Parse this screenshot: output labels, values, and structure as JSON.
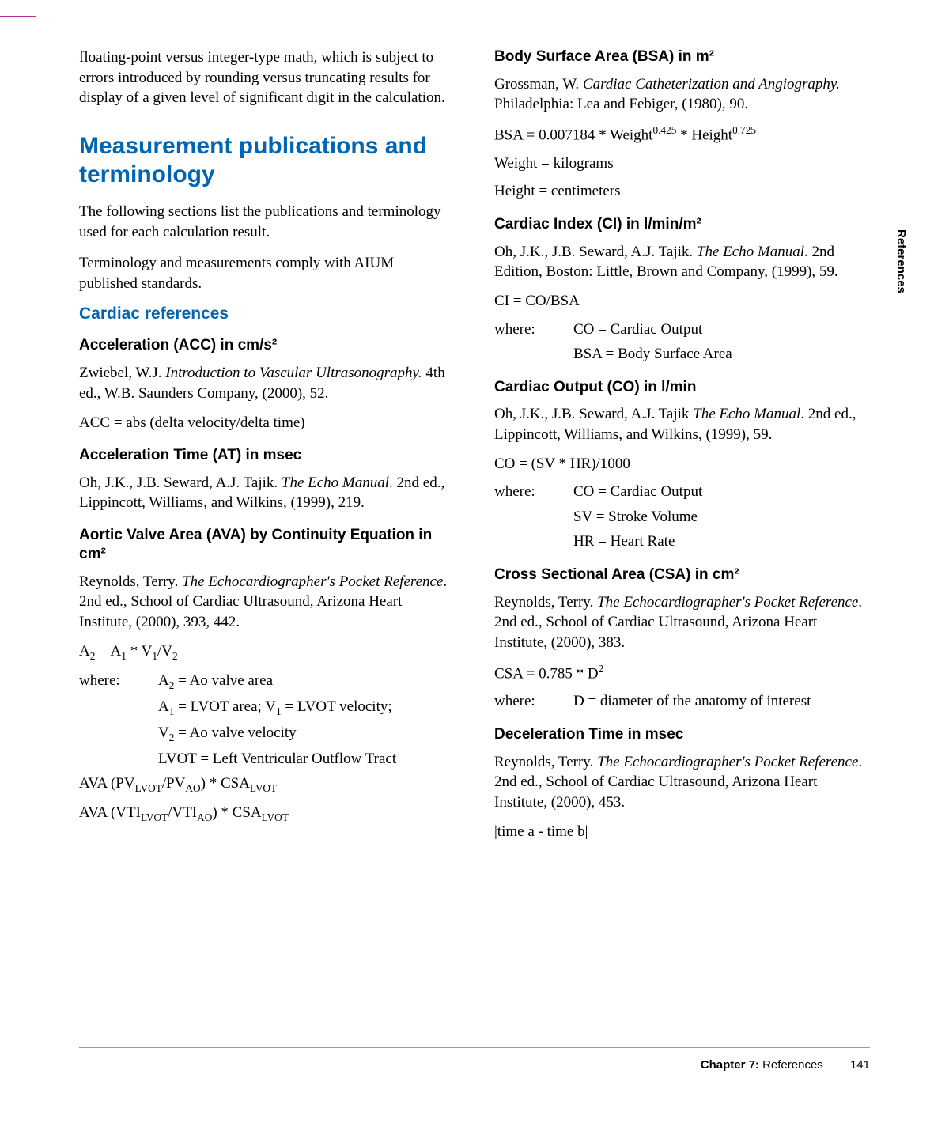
{
  "sideTab": "References",
  "leftCol": {
    "intro": "floating-point versus integer-type math, which is subject to errors introduced by rounding versus truncating results for display of a given level of significant digit in the calculation.",
    "h1": "Measurement publications and terminology",
    "p1": "The following sections list the publications and terminology used for each calculation result.",
    "p2": "Terminology and measurements comply with AIUM published standards.",
    "h2": "Cardiac references",
    "acc": {
      "title": "Acceleration (ACC) in cm/s²",
      "ref_pre": "Zwiebel, W.J. ",
      "ref_it": "Introduction to Vascular Ultrasonography.",
      "ref_post": " 4th ed., W.B. Saunders Company, (2000), 52.",
      "formula": "ACC = abs (delta velocity/delta time)"
    },
    "at": {
      "title": "Acceleration Time (AT) in msec",
      "ref_pre": "Oh, J.K., J.B. Seward, A.J. Tajik. ",
      "ref_it": "The Echo Manual",
      "ref_post": ". 2nd ed., Lippincott, Williams, and Wilkins, (1999), 219."
    },
    "ava": {
      "title": "Aortic Valve Area (AVA) by Continuity Equation in cm²",
      "ref_pre": "Reynolds, Terry. ",
      "ref_it": "The Echocardiographer's Pocket Reference",
      "ref_post": ". 2nd ed., School of Cardiac Ultrasound, Arizona Heart Institute, (2000), 393, 442.",
      "whereLabel": "where:",
      "w1": "A₂ = Ao valve area",
      "w2": "A₁ = LVOT area; V₁ = LVOT velocity;",
      "w3": "V₂ = Ao valve velocity",
      "w4": "LVOT = Left Ventricular Outflow Tract"
    }
  },
  "rightCol": {
    "bsa": {
      "title": "Body Surface Area (BSA) in m²",
      "ref_pre": "Grossman, W. ",
      "ref_it": "Cardiac Catheterization and Angiography.",
      "ref_post": " Philadelphia: Lea and Febiger, (1980), 90.",
      "f2": "Weight = kilograms",
      "f3": "Height = centimeters"
    },
    "ci": {
      "title": "Cardiac Index (CI) in l/min/m²",
      "ref_pre": "Oh, J.K., J.B. Seward, A.J. Tajik. ",
      "ref_it": "The Echo Manual",
      "ref_post": ". 2nd Edition, Boston: Little, Brown and Company, (1999), 59.",
      "f1": "CI = CO/BSA",
      "whereLabel": "where:",
      "w1": "CO = Cardiac Output",
      "w2": "BSA = Body Surface Area"
    },
    "co": {
      "title": "Cardiac Output (CO) in l/min",
      "ref_pre": "Oh, J.K., J.B. Seward, A.J. Tajik ",
      "ref_it": "The Echo Manual",
      "ref_post": ". 2nd ed., Lippincott, Williams, and Wilkins, (1999), 59.",
      "f1": "CO = (SV * HR)/1000",
      "whereLabel": "where:",
      "w1": "CO = Cardiac Output",
      "w2": "SV = Stroke Volume",
      "w3": "HR = Heart Rate"
    },
    "csa": {
      "title": "Cross Sectional Area (CSA) in cm²",
      "ref_pre": "Reynolds, Terry. ",
      "ref_it": "The Echocardiographer's Pocket Reference",
      "ref_post": ". 2nd ed., School of Cardiac Ultrasound, Arizona Heart Institute, (2000), 383.",
      "whereLabel": "where:",
      "w1": "D = diameter of the anatomy of interest"
    },
    "decel": {
      "title": "Deceleration Time in msec",
      "ref_pre": "Reynolds, Terry. ",
      "ref_it": "The Echocardiographer's Pocket Reference",
      "ref_post": ". 2nd ed., School of Cardiac Ultrasound, Arizona Heart Institute, (2000), 453.",
      "f1": "|time a - time b|"
    }
  },
  "footer": {
    "chapter": "Chapter 7:",
    "label": "  References",
    "page": "141"
  }
}
